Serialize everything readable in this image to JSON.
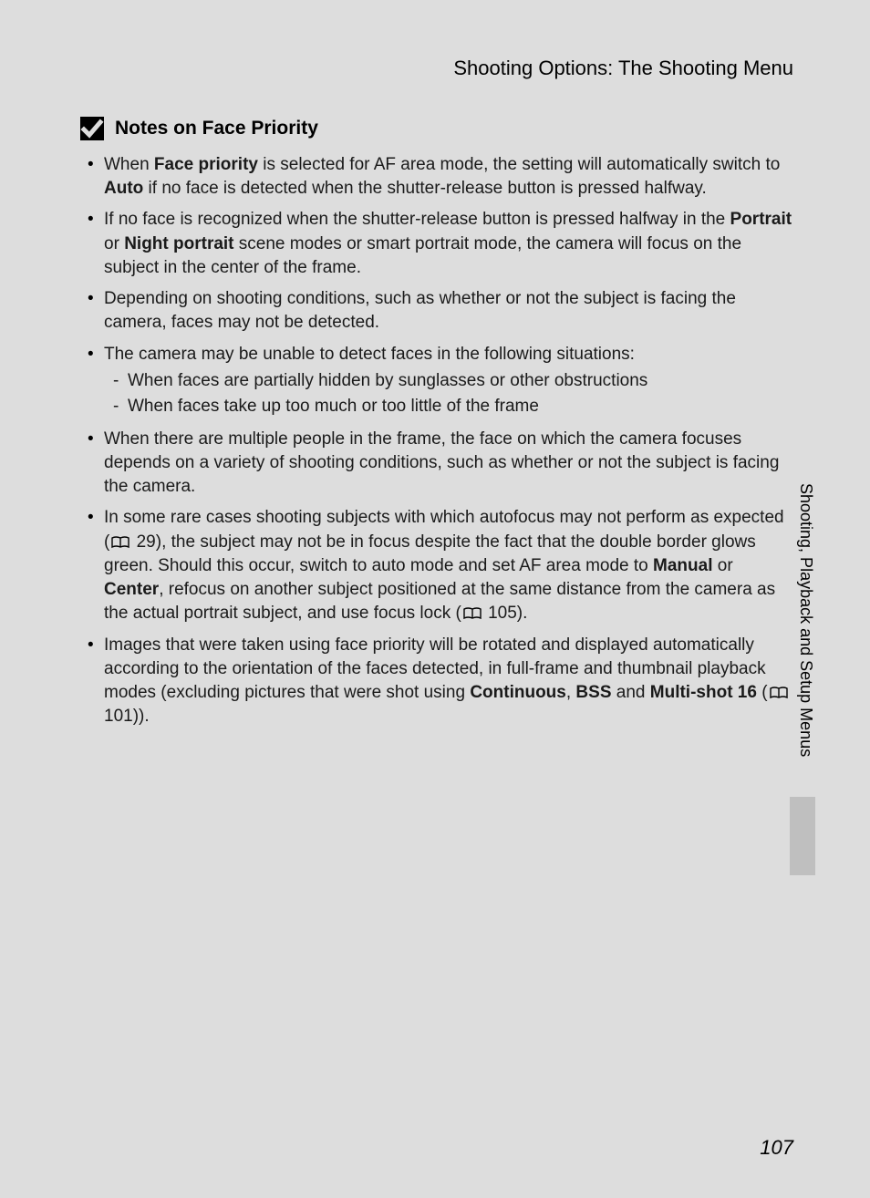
{
  "colors": {
    "page_bg": "#dddddd",
    "text": "#1a1a1a",
    "heading": "#000000",
    "tab_block": "#bfbfbf"
  },
  "typography": {
    "body_fontsize_pt": 14,
    "heading_fontsize_pt": 16,
    "header_fontsize_pt": 17,
    "page_number_fontsize_pt": 17
  },
  "header": "Shooting Options: The Shooting Menu",
  "section_title": "Notes on Face Priority",
  "bullets": [
    {
      "segments": [
        {
          "t": "When "
        },
        {
          "t": "Face priority",
          "bold": true
        },
        {
          "t": " is selected for AF area mode, the setting will automatically switch to "
        },
        {
          "t": "Auto",
          "bold": true
        },
        {
          "t": " if no face is detected when the shutter-release button is pressed halfway."
        }
      ]
    },
    {
      "segments": [
        {
          "t": "If no face is recognized when the shutter-release button is pressed halfway in the "
        },
        {
          "t": "Portrait",
          "bold": true
        },
        {
          "t": " or "
        },
        {
          "t": "Night portrait",
          "bold": true
        },
        {
          "t": " scene modes or smart portrait mode, the camera will focus on the subject in the center of the frame."
        }
      ]
    },
    {
      "segments": [
        {
          "t": "Depending on shooting conditions, such as whether or not the subject is facing the camera, faces may not be detected."
        }
      ]
    },
    {
      "segments": [
        {
          "t": "The camera may be unable to detect faces in the following situations:"
        }
      ],
      "sub": [
        "When faces are partially hidden by sunglasses or other obstructions",
        "When faces take up too much or too little of the frame"
      ]
    },
    {
      "segments": [
        {
          "t": "When there are multiple people in the frame, the face on which the camera focuses depends on a variety of shooting conditions, such as whether or not the subject is facing the camera."
        }
      ]
    },
    {
      "segments": [
        {
          "t": "In some rare cases shooting subjects with which autofocus may not perform as expected ("
        },
        {
          "icon": "book"
        },
        {
          "t": " 29), the subject may not be in focus despite the fact that the double border glows green. Should this occur, switch to auto mode and set AF area mode to "
        },
        {
          "t": "Manual",
          "bold": true
        },
        {
          "t": " or "
        },
        {
          "t": "Center",
          "bold": true
        },
        {
          "t": ", refocus on another subject positioned at the same distance from the camera as the actual portrait subject, and use focus lock ("
        },
        {
          "icon": "book"
        },
        {
          "t": " 105)."
        }
      ]
    },
    {
      "segments": [
        {
          "t": "Images that were taken using face priority will be rotated and displayed automatically according to the orientation of the faces detected, in full-frame and thumbnail playback modes (excluding pictures that were shot using "
        },
        {
          "t": "Continuous",
          "bold": true
        },
        {
          "t": ", "
        },
        {
          "t": "BSS",
          "bold": true
        },
        {
          "t": " and "
        },
        {
          "t": "Multi-shot 16",
          "bold": true
        },
        {
          "t": " ("
        },
        {
          "icon": "book"
        },
        {
          "t": " 101))."
        }
      ]
    }
  ],
  "side_tab": "Shooting, Playback and Setup Menus",
  "page_number": "107"
}
